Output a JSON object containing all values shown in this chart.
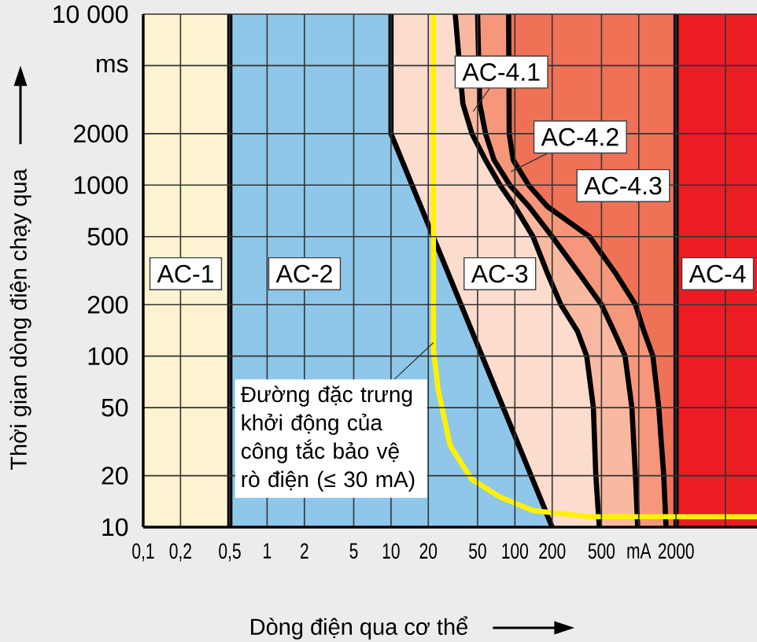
{
  "chart_data": {
    "type": "line",
    "xlabel": "Dòng điện qua cơ thể",
    "ylabel": "Thời gian dòng điện chạy qua",
    "log": "xy",
    "xlim": [
      0.1,
      9000
    ],
    "ylim": [
      10,
      10000
    ],
    "xticks": [
      {
        "value": 0.1,
        "label": "0,1"
      },
      {
        "value": 0.2,
        "label": "0,2"
      },
      {
        "value": 0.5,
        "label": "0,5"
      },
      1,
      2,
      5,
      10,
      20,
      50,
      100,
      200,
      500,
      {
        "value": 1000,
        "label": "mA"
      },
      2000,
      {
        "value": 5000,
        "label": null
      }
    ],
    "yticks": [
      10,
      20,
      50,
      100,
      200,
      500,
      1000,
      2000,
      {
        "value": 5000,
        "label": "ms"
      },
      {
        "value": 10000,
        "label": "10 000"
      }
    ],
    "grid": true,
    "series": [
      {
        "type": "area",
        "color": "#f07256",
        "x": [
          89,
          2000,
          2000
        ],
        "values": [
          10000,
          10000,
          10
        ]
      },
      {
        "type": "area",
        "color": "#f6977b",
        "x": [
          50,
          89,
          90,
          97,
          129,
          183,
          400,
          660,
          940,
          1100,
          1300,
          1450,
          1590,
          1660
        ],
        "values": [
          10000,
          10000,
          2000,
          1400,
          1000,
          750,
          500,
          300,
          200,
          140,
          100,
          50,
          20,
          10
        ]
      },
      {
        "type": "area",
        "color": "#f9b9a1",
        "x": [
          33,
          50,
          52,
          58,
          68,
          91,
          130,
          200,
          335,
          500,
          630,
          775,
          880,
          940,
          980
        ],
        "values": [
          10000,
          10000,
          3000,
          2000,
          1400,
          1000,
          750,
          500,
          300,
          200,
          140,
          100,
          50,
          20,
          10
        ]
      },
      {
        "type": "area",
        "color": "#fcdccd",
        "x": [
          10,
          33,
          38,
          45,
          58,
          76,
          100,
          140,
          185,
          235,
          320,
          380,
          430,
          450,
          480
        ],
        "values": [
          10000,
          10000,
          3000,
          2000,
          1400,
          1000,
          750,
          500,
          300,
          200,
          140,
          100,
          50,
          20,
          10
        ]
      },
      {
        "type": "area",
        "color": "#8fc7ea",
        "x": [
          0.5,
          10,
          10,
          200
        ],
        "values": [
          10000,
          10000,
          2000,
          10
        ]
      },
      {
        "type": "area",
        "color": "#fdf3d1",
        "x": [
          0.1,
          0.5,
          0.5
        ],
        "values": [
          10000,
          10000,
          10
        ]
      },
      {
        "color": "#fff200",
        "x": [
          22,
          22,
          24,
          30,
          45,
          76,
          140,
          400,
          9000
        ],
        "values": [
          10000,
          110,
          64,
          30,
          19,
          15,
          12.5,
          11.5,
          11.5
        ]
      }
    ],
    "bands": [
      {
        "axis": "x",
        "from": 2000,
        "to": 9000,
        "color": "#ec1c24"
      }
    ],
    "annotations": [
      "AC-1",
      "AC-2",
      "AC-3",
      {
        "text": "AC-4.1",
        "x": 46,
        "y": 2700
      },
      {
        "text": "AC-4.2",
        "x": 93,
        "y": 1200
      },
      "AC-4.3",
      "AC-4",
      {
        "text": "Đường đặc trưng khởi động của công tắc bảo vệ rò điện (≤ 30 mA)",
        "x": 22,
        "y": 120
      }
    ]
  }
}
